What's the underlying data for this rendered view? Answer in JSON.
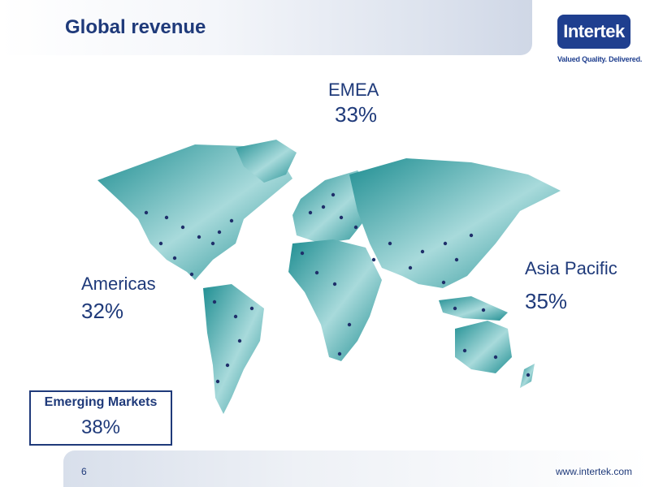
{
  "header": {
    "title": "Global revenue"
  },
  "logo": {
    "name": "Intertek",
    "tagline": "Valued Quality. Delivered."
  },
  "regions": {
    "emea": {
      "label": "EMEA",
      "value": "33%"
    },
    "americas": {
      "label": "Americas",
      "value": "32%"
    },
    "asia_pacific": {
      "label": "Asia Pacific",
      "value": "35%"
    }
  },
  "emerging": {
    "label": "Emerging Markets",
    "value": "38%"
  },
  "footer": {
    "page": "6",
    "url": "www.intertek.com"
  },
  "colors": {
    "brand": "#1f3f8f",
    "text": "#1f3a7a",
    "map": "#2e9ea0",
    "dot": "#1f2f6a"
  }
}
